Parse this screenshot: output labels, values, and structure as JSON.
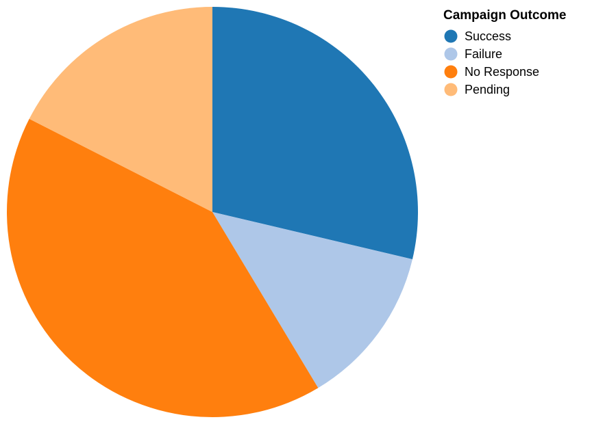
{
  "chart_data": {
    "type": "pie",
    "legend_title": "Campaign Outcome",
    "legend_position": "top-right",
    "categories": [
      "Success",
      "Failure",
      "No Response",
      "Pending"
    ],
    "values": [
      28.7,
      12.7,
      41.1,
      17.5
    ],
    "colors": [
      "#1f77b4",
      "#aec7e8",
      "#ff7f0e",
      "#ffbb78"
    ],
    "start_angle_deg": 0,
    "direction": "clockwise"
  }
}
